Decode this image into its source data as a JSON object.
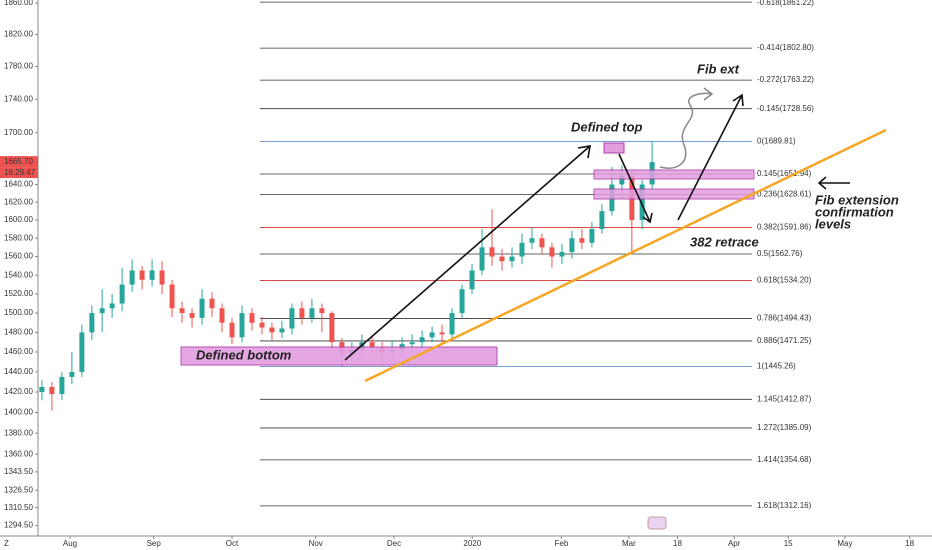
{
  "chart_data": {
    "type": "candlestick",
    "log_scale": true,
    "up_color": "#26a69a",
    "down_color": "#ef5350",
    "xlim": [
      -11.85,
      319.26
    ],
    "xticks": [
      {
        "value": 0,
        "label": "Aug"
      },
      {
        "value": 31,
        "label": "Sep"
      },
      {
        "value": 60,
        "label": "Oct"
      },
      {
        "value": 91,
        "label": "Nov"
      },
      {
        "value": 120,
        "label": "Dec"
      },
      {
        "value": 149,
        "label": "2020"
      },
      {
        "value": 182,
        "label": "Feb"
      },
      {
        "value": 207,
        "label": "Mar"
      },
      {
        "value": 225,
        "label": "18"
      },
      {
        "value": 246,
        "label": "Apr"
      },
      {
        "value": 266,
        "label": "15"
      },
      {
        "value": 287,
        "label": "May"
      },
      {
        "value": 311,
        "label": "18"
      }
    ],
    "ylim": [
      1864,
      1285
    ],
    "yticks": [
      {
        "value": 1860,
        "label": "1860.00"
      },
      {
        "value": 1820,
        "label": "1820.00"
      },
      {
        "value": 1780,
        "label": "1780.00"
      },
      {
        "value": 1740,
        "label": "1740.00"
      },
      {
        "value": 1700,
        "label": "1700.00"
      },
      {
        "value": 1640,
        "label": "1640.00"
      },
      {
        "value": 1620,
        "label": "1620.00"
      },
      {
        "value": 1600,
        "label": "1600.00"
      },
      {
        "value": 1580,
        "label": "1580.00"
      },
      {
        "value": 1560,
        "label": "1560.00"
      },
      {
        "value": 1540,
        "label": "1540.00"
      },
      {
        "value": 1520,
        "label": "1520.00"
      },
      {
        "value": 1500,
        "label": "1500.00"
      },
      {
        "value": 1480,
        "label": "1480.00"
      },
      {
        "value": 1460,
        "label": "1460.00"
      },
      {
        "value": 1440,
        "label": "1440.00"
      },
      {
        "value": 1420,
        "label": "1420.00"
      },
      {
        "value": 1400,
        "label": "1400.00"
      },
      {
        "value": 1380,
        "label": "1380.00"
      },
      {
        "value": 1360,
        "label": "1360.00"
      },
      {
        "value": 1343.5,
        "label": "1343.50"
      },
      {
        "value": 1326.5,
        "label": "1326.50"
      },
      {
        "value": 1310.5,
        "label": "1310.50"
      },
      {
        "value": 1294.5,
        "label": "1294.50"
      }
    ],
    "x": [
      -10.4,
      -6.7,
      -3.0,
      0.7,
      4.4,
      8.1,
      11.9,
      15.6,
      19.3,
      23.0,
      26.7,
      30.4,
      34.1,
      37.8,
      41.5,
      45.2,
      48.9,
      52.6,
      56.3,
      60.0,
      63.7,
      67.4,
      71.1,
      74.8,
      78.5,
      82.2,
      85.9,
      89.6,
      93.3,
      97.0,
      100.7,
      104.4,
      108.1,
      111.9,
      115.6,
      119.3,
      123.0,
      126.7,
      130.4,
      134.1,
      137.8,
      141.5,
      145.2,
      148.9,
      152.6,
      156.3,
      160.0,
      163.7,
      167.4,
      171.1,
      174.8,
      178.5,
      182.2,
      185.9,
      189.6,
      193.3,
      197.0,
      200.7,
      204.4,
      208.1,
      211.9,
      215.6
    ],
    "open": [
      1420,
      1425,
      1418,
      1435,
      1440,
      1480,
      1500,
      1505,
      1510,
      1530,
      1545,
      1535,
      1545,
      1530,
      1505,
      1500,
      1495,
      1515,
      1505,
      1490,
      1475,
      1500,
      1490,
      1485,
      1480,
      1484,
      1505,
      1495,
      1505,
      1500,
      1470,
      1458,
      1462,
      1470,
      1465,
      1460,
      1462,
      1468,
      1470,
      1475,
      1480,
      1478,
      1500,
      1525,
      1545,
      1570,
      1560,
      1555,
      1560,
      1575,
      1580,
      1570,
      1560,
      1565,
      1580,
      1575,
      1590,
      1610,
      1640,
      1650,
      1600,
      1640
    ],
    "high": [
      1432,
      1430,
      1440,
      1460,
      1488,
      1508,
      1525,
      1520,
      1548,
      1557,
      1550,
      1557,
      1555,
      1535,
      1512,
      1505,
      1525,
      1522,
      1510,
      1495,
      1508,
      1505,
      1496,
      1490,
      1492,
      1510,
      1512,
      1515,
      1510,
      1502,
      1474,
      1470,
      1478,
      1476,
      1470,
      1472,
      1475,
      1478,
      1482,
      1486,
      1488,
      1505,
      1530,
      1552,
      1590,
      1612,
      1568,
      1570,
      1585,
      1592,
      1585,
      1575,
      1574,
      1588,
      1590,
      1598,
      1618,
      1660,
      1662,
      1655,
      1645,
      1690
    ],
    "low": [
      1412,
      1402,
      1412,
      1428,
      1435,
      1472,
      1480,
      1495,
      1502,
      1522,
      1525,
      1528,
      1520,
      1496,
      1490,
      1485,
      1488,
      1496,
      1480,
      1468,
      1470,
      1482,
      1478,
      1472,
      1474,
      1478,
      1488,
      1490,
      1480,
      1462,
      1445,
      1450,
      1455,
      1458,
      1450,
      1452,
      1455,
      1460,
      1465,
      1470,
      1470,
      1474,
      1495,
      1520,
      1540,
      1550,
      1545,
      1548,
      1552,
      1568,
      1562,
      1548,
      1552,
      1558,
      1568,
      1570,
      1585,
      1605,
      1625,
      1565,
      1590,
      1635
    ],
    "close": [
      1425,
      1418,
      1435,
      1440,
      1480,
      1500,
      1505,
      1510,
      1530,
      1545,
      1535,
      1545,
      1530,
      1505,
      1500,
      1495,
      1515,
      1505,
      1490,
      1475,
      1500,
      1490,
      1485,
      1480,
      1484,
      1505,
      1495,
      1505,
      1500,
      1470,
      1458,
      1462,
      1470,
      1465,
      1460,
      1462,
      1468,
      1470,
      1475,
      1480,
      1478,
      1500,
      1525,
      1545,
      1570,
      1560,
      1555,
      1560,
      1575,
      1580,
      1570,
      1560,
      1565,
      1580,
      1575,
      1590,
      1610,
      1640,
      1650,
      1600,
      1640,
      1665.7
    ],
    "last_price": {
      "value": 1665.7,
      "label": "1665.70"
    },
    "countdown": "16:29:47",
    "corner_label": "Z",
    "fib_levels": [
      {
        "value": 1861.22,
        "label": "-0.618(1861.22)",
        "color": "#333333"
      },
      {
        "value": 1802.8,
        "label": "-0.414(1802.80)",
        "color": "#333333"
      },
      {
        "value": 1763.22,
        "label": "-0.272(1763.22)",
        "color": "#333333"
      },
      {
        "value": 1728.56,
        "label": "-0.145(1728.56)",
        "color": "#333333"
      },
      {
        "value": 1689.81,
        "label": "0(1689.81)",
        "color": "#4a7fc0"
      },
      {
        "value": 1651.94,
        "label": "0.145(1651.94)",
        "color": "#333333"
      },
      {
        "value": 1628.61,
        "label": "0.236(1628.61)",
        "color": "#333333"
      },
      {
        "value": 1591.86,
        "label": "0.382(1591.86)",
        "color": "#d32f2f"
      },
      {
        "value": 1562.76,
        "label": "0.5(1562.76)",
        "color": "#333333"
      },
      {
        "value": 1534.2,
        "label": "0.618(1534.20)",
        "color": "#d32f2f"
      },
      {
        "value": 1494.43,
        "label": "0.786(1494.43)",
        "color": "#333333"
      },
      {
        "value": 1471.25,
        "label": "0.886(1471.25)",
        "color": "#333333"
      },
      {
        "value": 1445.26,
        "label": "1(1445.26)",
        "color": "#4a7fc0"
      },
      {
        "value": 1412.87,
        "label": "1.145(1412.87)",
        "color": "#333333"
      },
      {
        "value": 1385.09,
        "label": "1.272(1385.09)",
        "color": "#333333"
      },
      {
        "value": 1354.68,
        "label": "1.414(1354.68)",
        "color": "#333333"
      },
      {
        "value": 1312.16,
        "label": "1.618(1312.16)",
        "color": "#333333"
      }
    ],
    "annotations": {
      "fib_ext": "Fib ext",
      "defined_top": "Defined top",
      "retrace": "382 retrace",
      "defined_bottom": "Defined bottom",
      "confirmation": [
        "Fib extension",
        "confirmation",
        "levels"
      ]
    }
  }
}
